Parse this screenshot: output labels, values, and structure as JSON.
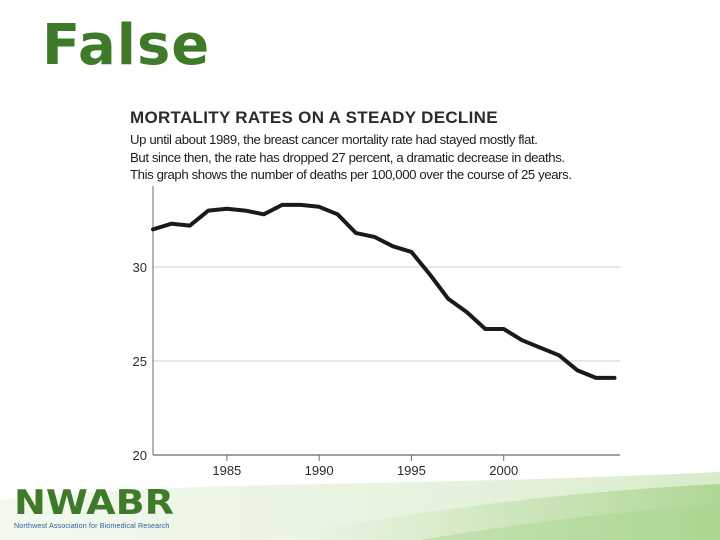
{
  "slide": {
    "title": "False",
    "logo": {
      "name": "NWABR",
      "tagline": "Northwest Association for Biomedical Research"
    }
  },
  "chart_data": {
    "type": "line",
    "title": "MORTALITY RATES ON A STEADY DECLINE",
    "subtitle_lines": [
      "Up until about 1989, the breast cancer mortality rate had stayed mostly flat.",
      "But since then, the rate has dropped 27 percent, a dramatic decrease in deaths.",
      "This graph shows the number of deaths per 100,000 over the course of 25 years."
    ],
    "xlabel": "",
    "ylabel": "",
    "xlim": [
      1981,
      2006.3
    ],
    "ylim": [
      20,
      34.2
    ],
    "x_ticks": [
      1985,
      1990,
      1995,
      2000
    ],
    "y_ticks": [
      20,
      25,
      30
    ],
    "grid": "horizontal",
    "series": [
      {
        "color": "#1a1a1a",
        "x": [
          1981,
          1982,
          1983,
          1984,
          1985,
          1986,
          1987,
          1988,
          1989,
          1990,
          1991,
          1992,
          1993,
          1994,
          1995,
          1996,
          1997,
          1998,
          1999,
          2000,
          2001,
          2002,
          2003,
          2004,
          2005,
          2006
        ],
        "values": [
          32.0,
          32.3,
          32.2,
          33.0,
          33.1,
          33.0,
          32.8,
          33.3,
          33.3,
          33.2,
          32.8,
          31.8,
          31.6,
          31.1,
          30.8,
          29.6,
          28.3,
          27.6,
          26.7,
          26.7,
          26.1,
          25.7,
          25.3,
          24.5,
          24.1,
          24.1
        ]
      }
    ]
  },
  "colors": {
    "title_green": "#3f7a2a",
    "line": "#1a1a1a",
    "grid": "#cfcfcf",
    "axis": "#6b6b6b"
  }
}
